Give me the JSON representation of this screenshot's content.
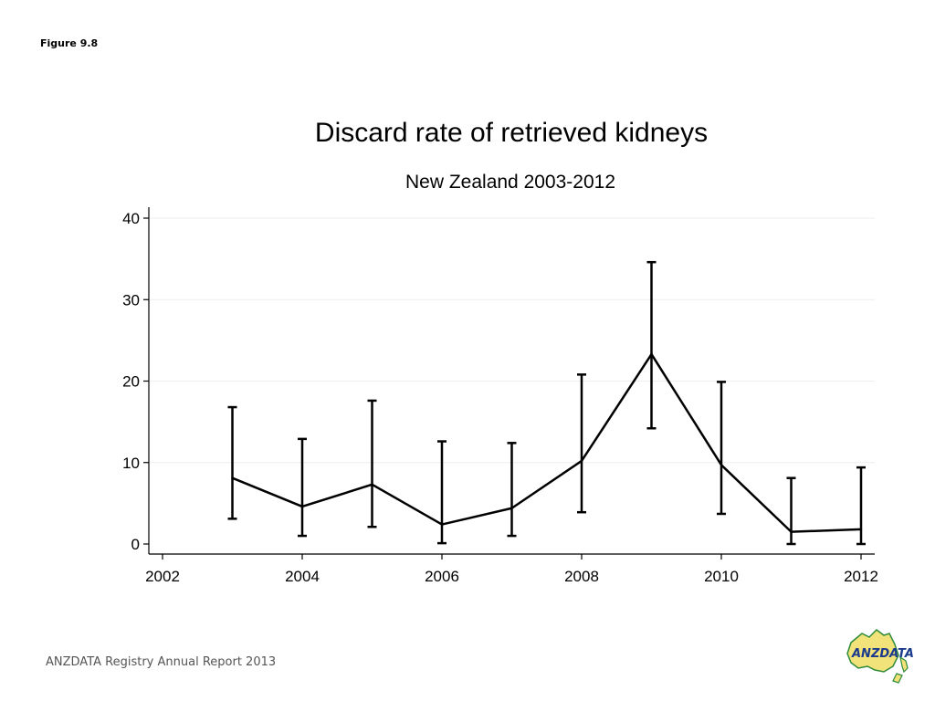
{
  "figure_label": "Figure 9.8",
  "footer": {
    "text": "ANZDATA Registry Annual Report 2013"
  },
  "logo": {
    "text": "ANZDATA",
    "colors": {
      "fill": "#f2e27a",
      "stroke": "#2e8b3a",
      "text": "#1a3a8c"
    }
  },
  "colors": {
    "line": "#000000",
    "grid": "#eeeeee",
    "axis": "#000000"
  },
  "chart_data": {
    "type": "line",
    "title": "Discard rate of retrieved kidneys",
    "subtitle": "New Zealand 2003-2012",
    "xlabel": "",
    "ylabel": "",
    "xlim": [
      2002,
      2012
    ],
    "ylim": [
      0,
      40
    ],
    "x_ticks": [
      2002,
      2004,
      2006,
      2008,
      2010,
      2012
    ],
    "y_ticks": [
      0,
      10,
      20,
      30,
      40
    ],
    "grid": true,
    "legend": "none",
    "error_bars": true,
    "series": [
      {
        "x": [
          2003,
          2004,
          2005,
          2006,
          2007,
          2008,
          2009,
          2010,
          2011,
          2012
        ],
        "values": [
          8.1,
          4.6,
          7.3,
          2.4,
          4.4,
          10.2,
          23.3,
          9.7,
          1.5,
          1.8
        ],
        "lower": [
          3.1,
          1.0,
          2.1,
          0.1,
          1.0,
          3.9,
          14.2,
          3.7,
          0.0,
          0.0
        ],
        "upper": [
          16.8,
          12.9,
          17.6,
          12.6,
          12.4,
          20.8,
          34.6,
          19.9,
          8.1,
          9.4
        ]
      }
    ]
  }
}
